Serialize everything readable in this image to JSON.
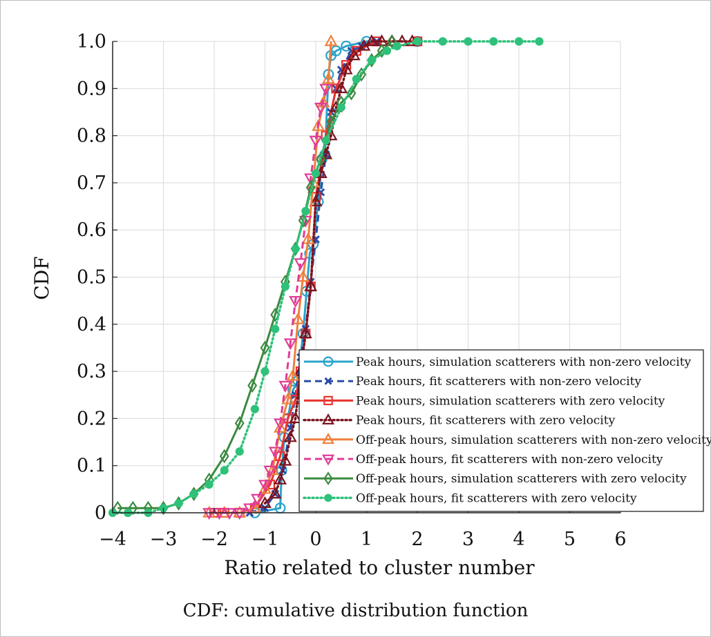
{
  "caption": "CDF: cumulative distribution function",
  "chart_data": {
    "type": "line",
    "xlabel": "Ratio related to cluster number",
    "ylabel": "CDF",
    "xlim": [
      -4,
      6
    ],
    "ylim": [
      0,
      1.0
    ],
    "x_ticks": [
      "−4",
      "−3",
      "−2",
      "−1",
      "0",
      "1",
      "2",
      "3",
      "4",
      "5",
      "6"
    ],
    "y_ticks": [
      "0",
      "0.1",
      "0.2",
      "0.3",
      "0.4",
      "0.5",
      "0.6",
      "0.7",
      "0.8",
      "0.9",
      "1.0"
    ],
    "grid": true,
    "legend_position": "lower-right",
    "series": [
      {
        "name": "Peak hours, simulation scatterers with non-zero velocity",
        "color": "#2aa3c9",
        "dash": "solid",
        "marker": "circle",
        "x": [
          -1.2,
          -0.7,
          -0.67,
          -0.62,
          -0.55,
          -0.45,
          -0.35,
          -0.25,
          -0.18,
          -0.12,
          -0.05,
          0.05,
          0.12,
          0.18,
          0.25,
          0.3,
          0.4,
          0.6,
          1.0,
          2.0
        ],
        "y": [
          0.0,
          0.01,
          0.09,
          0.16,
          0.2,
          0.26,
          0.28,
          0.38,
          0.47,
          0.55,
          0.57,
          0.66,
          0.75,
          0.76,
          0.93,
          0.97,
          0.98,
          0.99,
          1.0,
          1.0
        ]
      },
      {
        "name": "Peak hours, fit scatterers with non-zero velocity",
        "color": "#2b4da8",
        "dash": "dashed",
        "marker": "x",
        "x": [
          -1.3,
          -1.0,
          -0.8,
          -0.65,
          -0.5,
          -0.4,
          -0.3,
          -0.2,
          -0.1,
          0.0,
          0.1,
          0.2,
          0.3,
          0.4,
          0.5,
          0.7,
          0.9,
          1.2
        ],
        "y": [
          0.0,
          0.01,
          0.04,
          0.09,
          0.18,
          0.25,
          0.33,
          0.39,
          0.49,
          0.58,
          0.68,
          0.76,
          0.85,
          0.9,
          0.94,
          0.98,
          0.99,
          1.0
        ]
      },
      {
        "name": "Peak hours, simulation scatterers with zero velocity",
        "color": "#e8332e",
        "dash": "solid",
        "marker": "square",
        "x": [
          -2.0,
          -1.8,
          -1.5,
          -1.2,
          -0.9,
          -0.7,
          -0.55,
          -0.4,
          -0.3,
          -0.2,
          -0.1,
          0.0,
          0.2,
          0.4,
          0.6,
          0.8,
          1.2,
          2.0
        ],
        "y": [
          0.0,
          0.0,
          0.0,
          0.01,
          0.06,
          0.12,
          0.2,
          0.24,
          0.3,
          0.38,
          0.48,
          0.67,
          0.8,
          0.9,
          0.95,
          0.98,
          1.0,
          1.0
        ]
      },
      {
        "name": "Peak hours, fit scatterers with zero velocity",
        "color": "#7a1420",
        "dash": "dotted",
        "marker": "triangle-up",
        "x": [
          -1.0,
          -0.8,
          -0.7,
          -0.6,
          -0.5,
          -0.4,
          -0.3,
          -0.2,
          -0.1,
          0.0,
          0.1,
          0.2,
          0.3,
          0.4,
          0.5,
          0.6,
          0.75,
          0.95,
          1.1,
          1.3,
          1.5,
          1.7,
          1.9
        ],
        "y": [
          0.02,
          0.04,
          0.07,
          0.11,
          0.16,
          0.2,
          0.3,
          0.38,
          0.48,
          0.66,
          0.72,
          0.76,
          0.8,
          0.86,
          0.9,
          0.94,
          0.97,
          0.99,
          1.0,
          1.0,
          1.0,
          1.0,
          1.0
        ]
      },
      {
        "name": "Off-peak hours, simulation scatterers with non-zero velocity",
        "color": "#ef7f3c",
        "dash": "solid",
        "marker": "triangle-up",
        "x": [
          -2.1,
          -1.8,
          -1.5,
          -1.2,
          -1.0,
          -0.85,
          -0.7,
          -0.55,
          -0.45,
          -0.35,
          -0.25,
          -0.15,
          -0.05,
          0.05,
          0.15,
          0.25,
          0.3
        ],
        "y": [
          0.0,
          0.0,
          0.0,
          0.01,
          0.05,
          0.09,
          0.18,
          0.24,
          0.29,
          0.41,
          0.5,
          0.58,
          0.7,
          0.82,
          0.87,
          0.92,
          1.0
        ]
      },
      {
        "name": "Off-peak hours, fit scatterers with non-zero velocity",
        "color": "#e03c96",
        "dash": "dashed",
        "marker": "triangle-down",
        "x": [
          -2.1,
          -1.9,
          -1.7,
          -1.5,
          -1.3,
          -1.15,
          -1.0,
          -0.9,
          -0.8,
          -0.7,
          -0.6,
          -0.5,
          -0.4,
          -0.3,
          -0.2,
          -0.1,
          0.0,
          0.1,
          0.2
        ],
        "y": [
          0.0,
          0.0,
          0.0,
          0.0,
          0.01,
          0.03,
          0.06,
          0.09,
          0.13,
          0.19,
          0.27,
          0.36,
          0.45,
          0.53,
          0.62,
          0.71,
          0.79,
          0.86,
          0.9
        ]
      },
      {
        "name": "Off-peak hours, simulation scatterers with zero velocity",
        "color": "#3a8a3f",
        "dash": "solid",
        "marker": "diamond",
        "x": [
          -3.9,
          -3.6,
          -3.3,
          -3.0,
          -2.7,
          -2.4,
          -2.1,
          -1.8,
          -1.5,
          -1.25,
          -1.0,
          -0.8,
          -0.6,
          -0.4,
          -0.25,
          -0.1,
          0.1,
          0.3,
          0.5,
          0.7,
          0.9,
          1.1,
          1.3,
          1.5
        ],
        "y": [
          0.01,
          0.01,
          0.01,
          0.01,
          0.02,
          0.04,
          0.07,
          0.12,
          0.19,
          0.27,
          0.35,
          0.42,
          0.49,
          0.56,
          0.62,
          0.69,
          0.75,
          0.83,
          0.87,
          0.89,
          0.93,
          0.96,
          0.98,
          1.0
        ]
      },
      {
        "name": "Off-peak hours, fit scatterers with zero velocity",
        "color": "#2fc17a",
        "dash": "dotted",
        "marker": "star",
        "x": [
          -4.0,
          -3.7,
          -3.3,
          -3.0,
          -2.7,
          -2.4,
          -2.1,
          -1.8,
          -1.5,
          -1.2,
          -1.0,
          -0.8,
          -0.6,
          -0.4,
          -0.2,
          0.0,
          0.2,
          0.5,
          0.8,
          1.1,
          1.4,
          1.6,
          2.0,
          2.5,
          3.0,
          3.5,
          4.0,
          4.4
        ],
        "y": [
          0.0,
          0.0,
          0.0,
          0.01,
          0.02,
          0.04,
          0.06,
          0.09,
          0.13,
          0.22,
          0.3,
          0.39,
          0.48,
          0.56,
          0.64,
          0.72,
          0.79,
          0.86,
          0.92,
          0.96,
          0.98,
          0.99,
          1.0,
          1.0,
          1.0,
          1.0,
          1.0,
          1.0
        ]
      }
    ]
  }
}
